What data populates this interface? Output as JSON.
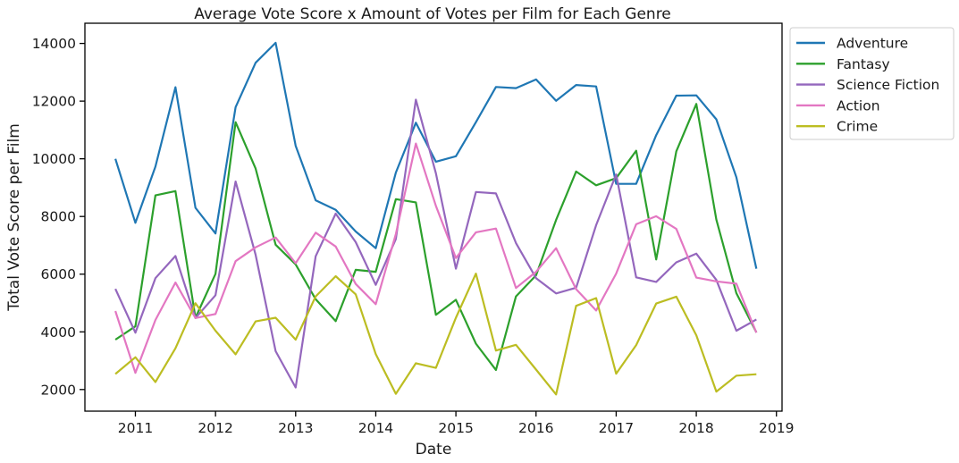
{
  "chart_data": {
    "type": "line",
    "title": "Average Vote Score x Amount of Votes per Film for Each Genre",
    "xlabel": "Date",
    "ylabel": "Total Vote Score per Film",
    "x_ticks": [
      "2011",
      "2012",
      "2013",
      "2014",
      "2015",
      "2016",
      "2017",
      "2018",
      "2019"
    ],
    "y_ticks": [
      "2000",
      "4000",
      "6000",
      "8000",
      "10000",
      "12000",
      "14000"
    ],
    "xlim": [
      2010.37,
      2019.07
    ],
    "ylim": [
      1250,
      14700
    ],
    "x": [
      2010.75,
      2011.0,
      2011.25,
      2011.5,
      2011.75,
      2012.0,
      2012.25,
      2012.5,
      2012.75,
      2013.0,
      2013.25,
      2013.5,
      2013.75,
      2014.0,
      2014.25,
      2014.5,
      2014.75,
      2015.0,
      2015.25,
      2015.5,
      2015.75,
      2016.0,
      2016.25,
      2016.5,
      2016.75,
      2017.0,
      2017.25,
      2017.5,
      2017.75,
      2018.0,
      2018.25,
      2018.5,
      2018.75
    ],
    "grid": false,
    "legend_position": "outside-top-right",
    "series": [
      {
        "name": "Adventure",
        "color": "#1f77b4",
        "values": [
          10000,
          7780,
          9730,
          12480,
          8300,
          7410,
          11790,
          13330,
          14020,
          10450,
          8560,
          8230,
          7480,
          6900,
          9520,
          11250,
          9900,
          10090,
          11270,
          12490,
          12450,
          12750,
          12010,
          12560,
          12510,
          9130,
          9130,
          10820,
          12190,
          12200,
          11370,
          9360,
          6190
        ]
      },
      {
        "name": "Fantasy",
        "color": "#2ca02c",
        "values": [
          3730,
          4190,
          8730,
          8880,
          4490,
          6010,
          11270,
          9660,
          7020,
          6340,
          5130,
          4370,
          6150,
          6080,
          8600,
          8490,
          4590,
          5110,
          3590,
          2680,
          5230,
          5960,
          7880,
          9560,
          9080,
          9330,
          10280,
          6510,
          10260,
          11900,
          7890,
          5340,
          3980
        ]
      },
      {
        "name": "Science Fiction",
        "color": "#9467bd",
        "values": [
          5490,
          3970,
          5860,
          6630,
          4480,
          5270,
          9210,
          6670,
          3330,
          2070,
          6620,
          8100,
          7110,
          5630,
          7220,
          12050,
          9500,
          6190,
          8850,
          8800,
          7080,
          5860,
          5330,
          5530,
          7700,
          9460,
          5890,
          5730,
          6410,
          6710,
          5800,
          4040,
          4430
        ]
      },
      {
        "name": "Action",
        "color": "#e377c2",
        "values": [
          4720,
          2580,
          4410,
          5710,
          4480,
          4620,
          6450,
          6930,
          7270,
          6380,
          7440,
          6960,
          5660,
          4960,
          7390,
          10530,
          8370,
          6560,
          7450,
          7580,
          5520,
          6080,
          6900,
          5480,
          4740,
          6020,
          7730,
          8010,
          7570,
          5880,
          5750,
          5670,
          3970
        ]
      },
      {
        "name": "Crime",
        "color": "#bcbd22",
        "values": [
          2540,
          3120,
          2260,
          3430,
          4990,
          4040,
          3220,
          4360,
          4490,
          3730,
          5230,
          5930,
          5300,
          3230,
          1850,
          2910,
          2750,
          4490,
          6020,
          3350,
          3550,
          2690,
          1830,
          4900,
          5170,
          2550,
          3540,
          4980,
          5220,
          3880,
          1930,
          2480,
          2530
        ]
      }
    ]
  }
}
